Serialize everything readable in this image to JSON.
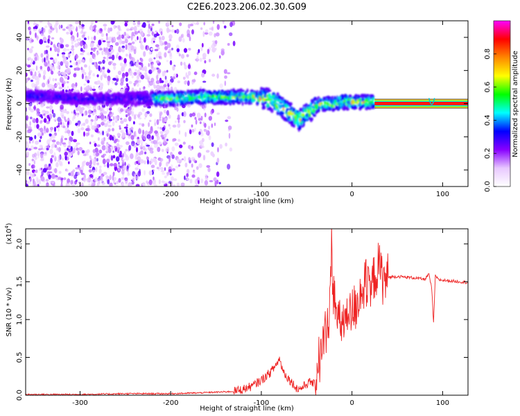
{
  "figure": {
    "title": "C2E6.2023.206.02.30.G09"
  },
  "chart_data": [
    {
      "type": "heatmap",
      "xlabel": "Height of straight line (km)",
      "ylabel": "Frequency (Hz)",
      "xlim": [
        -360,
        128
      ],
      "ylim": [
        -50,
        50
      ],
      "xticks": [
        -300,
        -200,
        -100,
        0,
        100
      ],
      "yticks": [
        -40,
        -20,
        0,
        20,
        40
      ],
      "ridge": {
        "x": [
          -360,
          -300,
          -250,
          -200,
          -170,
          -150,
          -130,
          -110,
          -95,
          -85,
          -75,
          -65,
          -58,
          -52,
          -45,
          -38,
          -30,
          -20,
          -10,
          0,
          10,
          20,
          25
        ],
        "frequency_hz": [
          5,
          3,
          3,
          3,
          4,
          4,
          4,
          4,
          3,
          1,
          -3,
          -7,
          -10,
          -7,
          -4,
          -1,
          0,
          0,
          1,
          1,
          1,
          1,
          1
        ]
      },
      "carrier": {
        "x_start": 25,
        "x_end": 128,
        "frequency_hz": 0
      },
      "colorbar": {
        "label": "Normalized spectral amplitude",
        "range": [
          0.0,
          1.0
        ],
        "ticks": [
          0.0,
          0.2,
          0.4,
          0.6,
          0.8
        ],
        "colormap": [
          "#ffffff",
          "#e8c8ff",
          "#8800ff",
          "#0000ff",
          "#00ffff",
          "#00ff00",
          "#ffff00",
          "#ff8800",
          "#ff0000",
          "#ff00ff"
        ]
      }
    },
    {
      "type": "line",
      "xlabel": "Height of straight line (km)",
      "ylabel": "SNR (10 * v/v)",
      "y_multiplier_label": "(x10",
      "y_multiplier_exp": "4",
      "y_multiplier_close": ")",
      "xlim": [
        -360,
        128
      ],
      "ylim": [
        0,
        2.2
      ],
      "xticks": [
        -300,
        -200,
        -100,
        0,
        100
      ],
      "yticks": [
        0.0,
        0.5,
        1.0,
        1.5,
        2.0
      ],
      "ytick_labels": [
        "0.0",
        "0.5",
        "1.0",
        "1.5",
        "2.0"
      ],
      "color": "#ee2222",
      "series": [
        {
          "x": [
            -360,
            -300,
            -250,
            -200,
            -170,
            -150,
            -130,
            -120,
            -110,
            -100,
            -95,
            -90,
            -85,
            -80,
            -78,
            -75,
            -70,
            -65,
            -60,
            -55,
            -50,
            -45,
            -40,
            -38,
            -35,
            -32,
            -30,
            -25,
            -22,
            -20,
            -15,
            -10,
            -5,
            0,
            5,
            10,
            15,
            20,
            25,
            30,
            35,
            40,
            50,
            60,
            70,
            80,
            85,
            88,
            90,
            92,
            95,
            100,
            110,
            120,
            128
          ],
          "y": [
            0.01,
            0.01,
            0.02,
            0.02,
            0.03,
            0.04,
            0.05,
            0.08,
            0.12,
            0.2,
            0.25,
            0.3,
            0.38,
            0.48,
            0.4,
            0.3,
            0.22,
            0.15,
            0.08,
            0.1,
            0.15,
            0.18,
            0.12,
            0.5,
            0.45,
            0.7,
            0.8,
            1.1,
            1.7,
            1.3,
            0.9,
            1.0,
            0.95,
            1.1,
            1.2,
            1.4,
            1.45,
            1.3,
            1.6,
            1.7,
            1.5,
            1.56,
            1.57,
            1.56,
            1.55,
            1.53,
            1.6,
            1.4,
            0.95,
            1.58,
            1.53,
            1.52,
            1.51,
            1.5,
            1.49
          ]
        }
      ]
    }
  ]
}
